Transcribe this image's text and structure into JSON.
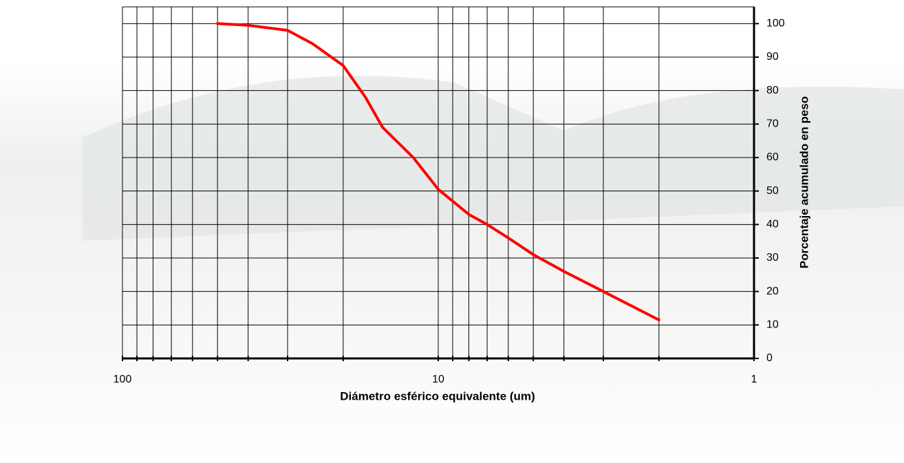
{
  "chart_data": {
    "type": "line",
    "x_label": "Diámetro esférico equivalente (um)",
    "y_label": "Porcentaje acumulado en peso",
    "x_scale": "log",
    "xlim": [
      100,
      1
    ],
    "xticks": [
      100,
      10,
      1
    ],
    "xticks_minor": [
      90,
      80,
      70,
      60,
      50,
      40,
      30,
      20,
      9,
      8,
      7,
      6,
      5,
      4,
      3,
      2
    ],
    "ylim": [
      0,
      105
    ],
    "yticks": [
      0,
      10,
      20,
      30,
      40,
      50,
      60,
      70,
      80,
      90,
      100
    ],
    "y_axis_side": "right",
    "grid": true,
    "series": [
      {
        "color": "#ff0000",
        "x": [
          50,
          40,
          30,
          25,
          20,
          17,
          15,
          12,
          10,
          8,
          7,
          6,
          5,
          4,
          3,
          2
        ],
        "values": [
          100,
          99.5,
          98,
          94,
          87.5,
          78,
          69,
          60,
          50.5,
          43,
          40,
          36,
          31,
          26,
          20,
          11.5
        ]
      }
    ]
  }
}
